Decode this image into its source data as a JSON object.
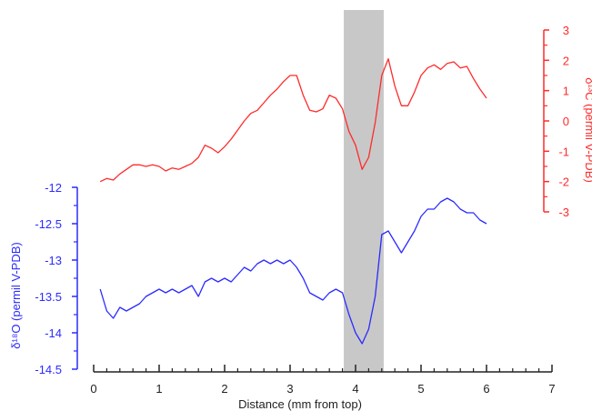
{
  "chart_data": {
    "type": "line",
    "xlabel": "Distance (mm from top)",
    "xlim": [
      0,
      7
    ],
    "x_ticks": [
      "0",
      "1",
      "2",
      "3",
      "4",
      "5",
      "6",
      "7"
    ],
    "shaded_region": {
      "x": [
        3.82,
        4.43
      ],
      "color": "#c8c8c8"
    },
    "axes": {
      "left": {
        "label": "δ¹⁸O (permil V-PDB)",
        "color": "#2b2bff",
        "ylim": [
          -14.5,
          -12
        ],
        "ticks": [
          "-12",
          "-12.5",
          "-13",
          "-13.5",
          "-14",
          "-14.5"
        ]
      },
      "right": {
        "label": "δ¹³C (permil V-PDB)",
        "color": "#ff2b2b",
        "ylim": [
          -3,
          3
        ],
        "ticks": [
          "3",
          "2",
          "1",
          "0",
          "-1",
          "-2",
          "-3"
        ]
      }
    },
    "series": [
      {
        "axis": "right",
        "color": "#ff2b2b",
        "x": [
          0.1,
          0.2,
          0.3,
          0.4,
          0.5,
          0.6,
          0.7,
          0.8,
          0.9,
          1.0,
          1.1,
          1.2,
          1.3,
          1.4,
          1.5,
          1.6,
          1.7,
          1.8,
          1.9,
          2.0,
          2.1,
          2.2,
          2.3,
          2.4,
          2.5,
          2.6,
          2.7,
          2.8,
          2.9,
          3.0,
          3.1,
          3.2,
          3.3,
          3.4,
          3.5,
          3.6,
          3.7,
          3.8,
          3.9,
          4.0,
          4.1,
          4.2,
          4.3,
          4.4,
          4.5,
          4.6,
          4.7,
          4.8,
          4.9,
          5.0,
          5.1,
          5.2,
          5.3,
          5.4,
          5.5,
          5.6,
          5.7,
          5.8,
          5.9,
          6.0
        ],
        "values": [
          -2.0,
          -1.9,
          -1.95,
          -1.75,
          -1.6,
          -1.45,
          -1.45,
          -1.5,
          -1.45,
          -1.5,
          -1.65,
          -1.55,
          -1.6,
          -1.5,
          -1.4,
          -1.2,
          -0.8,
          -0.9,
          -1.05,
          -0.85,
          -0.6,
          -0.3,
          0.0,
          0.25,
          0.35,
          0.6,
          0.85,
          1.05,
          1.3,
          1.5,
          1.5,
          0.85,
          0.35,
          0.3,
          0.4,
          0.85,
          0.75,
          0.4,
          -0.35,
          -0.8,
          -1.6,
          -1.2,
          -0.05,
          1.5,
          2.05,
          1.15,
          0.5,
          0.5,
          0.95,
          1.5,
          1.75,
          1.85,
          1.7,
          1.9,
          1.95,
          1.75,
          1.8,
          1.4,
          1.05,
          0.75
        ]
      },
      {
        "axis": "left",
        "color": "#2b2bff",
        "x": [
          0.1,
          0.2,
          0.3,
          0.4,
          0.5,
          0.6,
          0.7,
          0.8,
          0.9,
          1.0,
          1.1,
          1.2,
          1.3,
          1.4,
          1.5,
          1.6,
          1.7,
          1.8,
          1.9,
          2.0,
          2.1,
          2.2,
          2.3,
          2.4,
          2.5,
          2.6,
          2.7,
          2.8,
          2.9,
          3.0,
          3.1,
          3.2,
          3.3,
          3.4,
          3.5,
          3.6,
          3.7,
          3.8,
          3.9,
          4.0,
          4.1,
          4.2,
          4.3,
          4.4,
          4.5,
          4.6,
          4.7,
          4.8,
          4.9,
          5.0,
          5.1,
          5.2,
          5.3,
          5.4,
          5.5,
          5.6,
          5.7,
          5.8,
          5.9,
          6.0
        ],
        "values": [
          -13.4,
          -13.7,
          -13.8,
          -13.65,
          -13.7,
          -13.65,
          -13.6,
          -13.5,
          -13.45,
          -13.4,
          -13.45,
          -13.4,
          -13.45,
          -13.4,
          -13.35,
          -13.5,
          -13.3,
          -13.25,
          -13.3,
          -13.25,
          -13.3,
          -13.2,
          -13.1,
          -13.15,
          -13.05,
          -13.0,
          -13.05,
          -13.0,
          -13.05,
          -13.0,
          -13.1,
          -13.25,
          -13.45,
          -13.5,
          -13.55,
          -13.45,
          -13.4,
          -13.45,
          -13.75,
          -14.0,
          -14.15,
          -13.95,
          -13.5,
          -12.65,
          -12.6,
          -12.75,
          -12.9,
          -12.75,
          -12.6,
          -12.4,
          -12.3,
          -12.3,
          -12.2,
          -12.15,
          -12.2,
          -12.3,
          -12.35,
          -12.35,
          -12.45,
          -12.5
        ]
      }
    ]
  }
}
